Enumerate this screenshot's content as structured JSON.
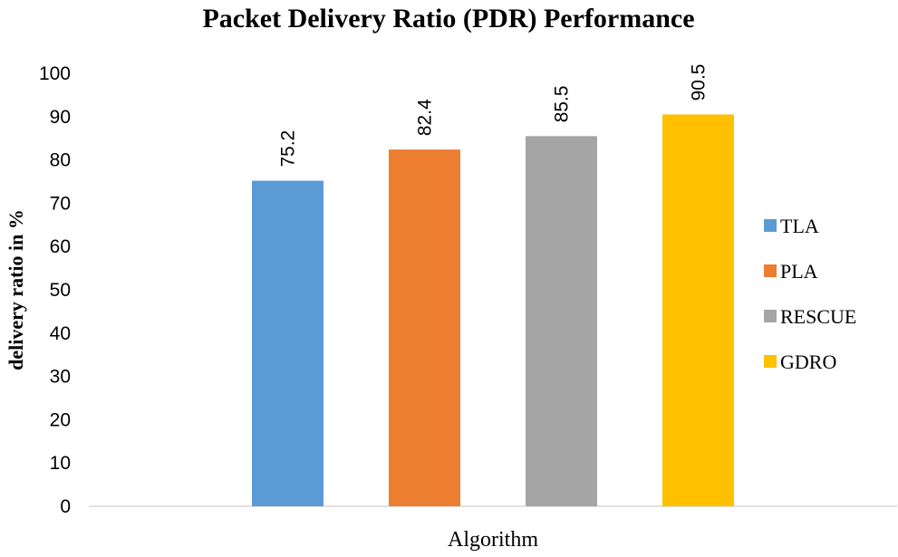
{
  "chart_data": {
    "type": "bar",
    "title": "Packet Delivery Ratio (PDR) Performance",
    "xlabel": "Algorithm",
    "ylabel": "delivery ratio in %",
    "ylim": [
      0,
      100
    ],
    "yticks": [
      "0",
      "10",
      "20",
      "30",
      "40",
      "50",
      "60",
      "70",
      "80",
      "90",
      "100"
    ],
    "grid": false,
    "legend_position": "right",
    "series": [
      {
        "name": "TLA",
        "values": [
          75.2
        ],
        "label": "75.2",
        "color": "#5b9bd5"
      },
      {
        "name": "PLA",
        "values": [
          82.4
        ],
        "label": "82.4",
        "color": "#ed7d31"
      },
      {
        "name": "RESCUE",
        "values": [
          85.5
        ],
        "label": "85.5",
        "color": "#a5a5a5"
      },
      {
        "name": "GDRO",
        "values": [
          90.5
        ],
        "label": "90.5",
        "color": "#ffc000"
      }
    ]
  }
}
